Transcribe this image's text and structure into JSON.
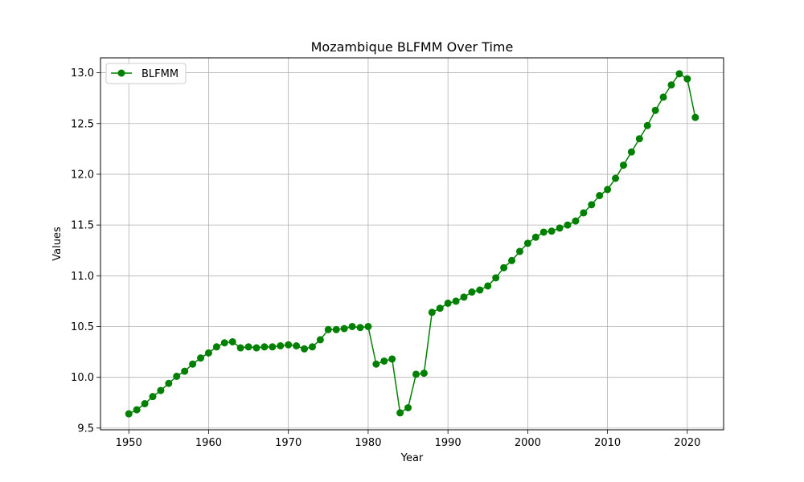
{
  "chart_data": {
    "type": "line",
    "title": "Mozambique BLFMM Over Time",
    "xlabel": "Year",
    "ylabel": "Values",
    "xlim": [
      1946.45,
      2024.55
    ],
    "ylim": [
      9.483,
      13.147
    ],
    "xticks": [
      1950,
      1960,
      1970,
      1980,
      1990,
      2000,
      2010,
      2020
    ],
    "yticks": [
      9.5,
      10.0,
      10.5,
      11.0,
      11.5,
      12.0,
      12.5,
      13.0
    ],
    "ytick_labels": [
      "9.5",
      "10.0",
      "10.5",
      "11.0",
      "11.5",
      "12.0",
      "12.5",
      "13.0"
    ],
    "grid": true,
    "legend_position": "top-left",
    "series": [
      {
        "name": "BLFMM",
        "color": "#008000",
        "marker": "circle",
        "x": [
          1950,
          1951,
          1952,
          1953,
          1954,
          1955,
          1956,
          1957,
          1958,
          1959,
          1960,
          1961,
          1962,
          1963,
          1964,
          1965,
          1966,
          1967,
          1968,
          1969,
          1970,
          1971,
          1972,
          1973,
          1974,
          1975,
          1976,
          1977,
          1978,
          1979,
          1980,
          1981,
          1982,
          1983,
          1984,
          1985,
          1986,
          1987,
          1988,
          1989,
          1990,
          1991,
          1992,
          1993,
          1994,
          1995,
          1996,
          1997,
          1998,
          1999,
          2000,
          2001,
          2002,
          2003,
          2004,
          2005,
          2006,
          2007,
          2008,
          2009,
          2010,
          2011,
          2012,
          2013,
          2014,
          2015,
          2016,
          2017,
          2018,
          2019,
          2020,
          2021
        ],
        "values": [
          9.64,
          9.68,
          9.74,
          9.81,
          9.87,
          9.94,
          10.01,
          10.06,
          10.13,
          10.19,
          10.24,
          10.3,
          10.34,
          10.35,
          10.29,
          10.3,
          10.29,
          10.3,
          10.3,
          10.31,
          10.32,
          10.31,
          10.28,
          10.3,
          10.37,
          10.47,
          10.47,
          10.48,
          10.5,
          10.49,
          10.5,
          10.13,
          10.16,
          10.18,
          9.65,
          9.7,
          10.03,
          10.04,
          10.64,
          10.68,
          10.73,
          10.75,
          10.79,
          10.84,
          10.86,
          10.9,
          10.98,
          11.08,
          11.15,
          11.24,
          11.32,
          11.38,
          11.43,
          11.44,
          11.47,
          11.5,
          11.54,
          11.62,
          11.7,
          11.79,
          11.85,
          11.96,
          12.09,
          12.22,
          12.35,
          12.48,
          12.63,
          12.76,
          12.88,
          12.99,
          12.94,
          12.56
        ]
      }
    ]
  }
}
